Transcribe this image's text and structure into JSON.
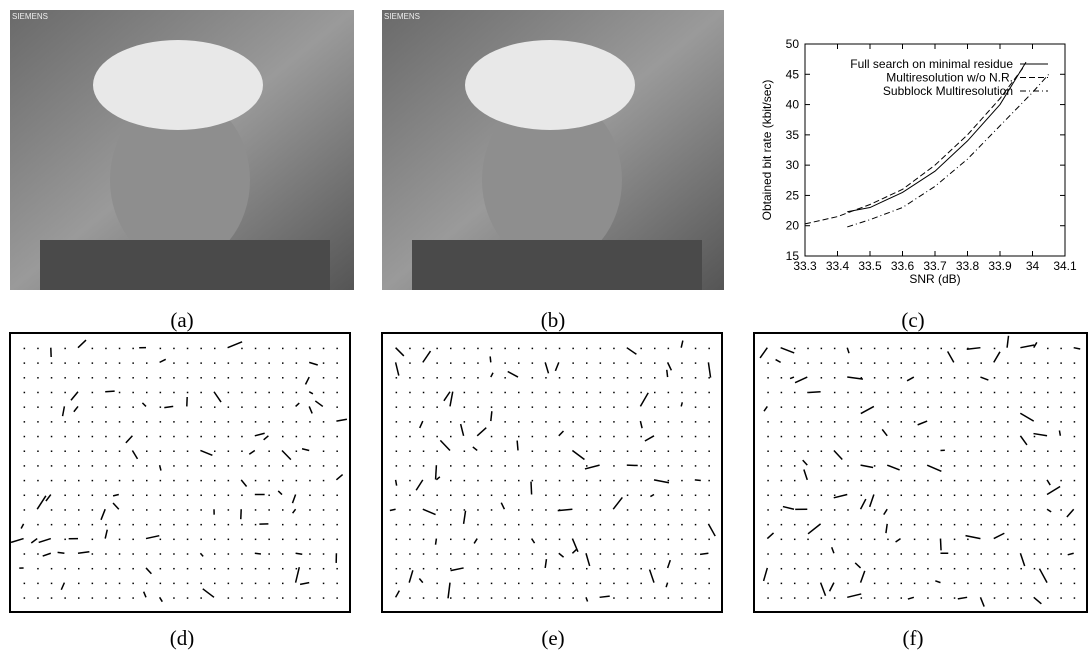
{
  "photos": [
    {
      "watermark": "SIEMENS"
    },
    {
      "watermark": "SIEMENS"
    }
  ],
  "captions": [
    "(a)",
    "(b)",
    "(c)",
    "(d)",
    "(e)",
    "(f)"
  ],
  "chart_data": {
    "type": "line",
    "xlabel": "SNR (dB)",
    "ylabel": "Obtained bit rate (kbit/sec)",
    "xlim": [
      33.3,
      34.1
    ],
    "ylim": [
      15,
      50
    ],
    "xticks": [
      33.3,
      33.4,
      33.5,
      33.6,
      33.7,
      33.8,
      33.9,
      34,
      34.1
    ],
    "yticks": [
      15,
      20,
      25,
      30,
      35,
      40,
      45,
      50
    ],
    "legend": "upper left",
    "series": [
      {
        "name": "Full search on minimal residue",
        "color": "#000",
        "dash": "solid",
        "x": [
          33.43,
          33.5,
          33.6,
          33.7,
          33.8,
          33.9,
          33.98
        ],
        "values": [
          22.3,
          23,
          25.5,
          29,
          34,
          40,
          47
        ]
      },
      {
        "name": "Multiresolution w/o N.R.",
        "color": "#000",
        "dash": "dashed",
        "x": [
          33.3,
          33.4,
          33.5,
          33.6,
          33.7,
          33.8,
          33.9,
          33.97
        ],
        "values": [
          20.3,
          21.5,
          23.5,
          26,
          30,
          35,
          41,
          46
        ]
      },
      {
        "name": "Subblock Multiresolution",
        "color": "#000",
        "dash": "dashdot",
        "x": [
          33.43,
          33.5,
          33.6,
          33.7,
          33.8,
          33.9,
          34,
          34.05
        ],
        "values": [
          19.8,
          21,
          23,
          26.5,
          31,
          36.5,
          42,
          45
        ]
      }
    ]
  }
}
